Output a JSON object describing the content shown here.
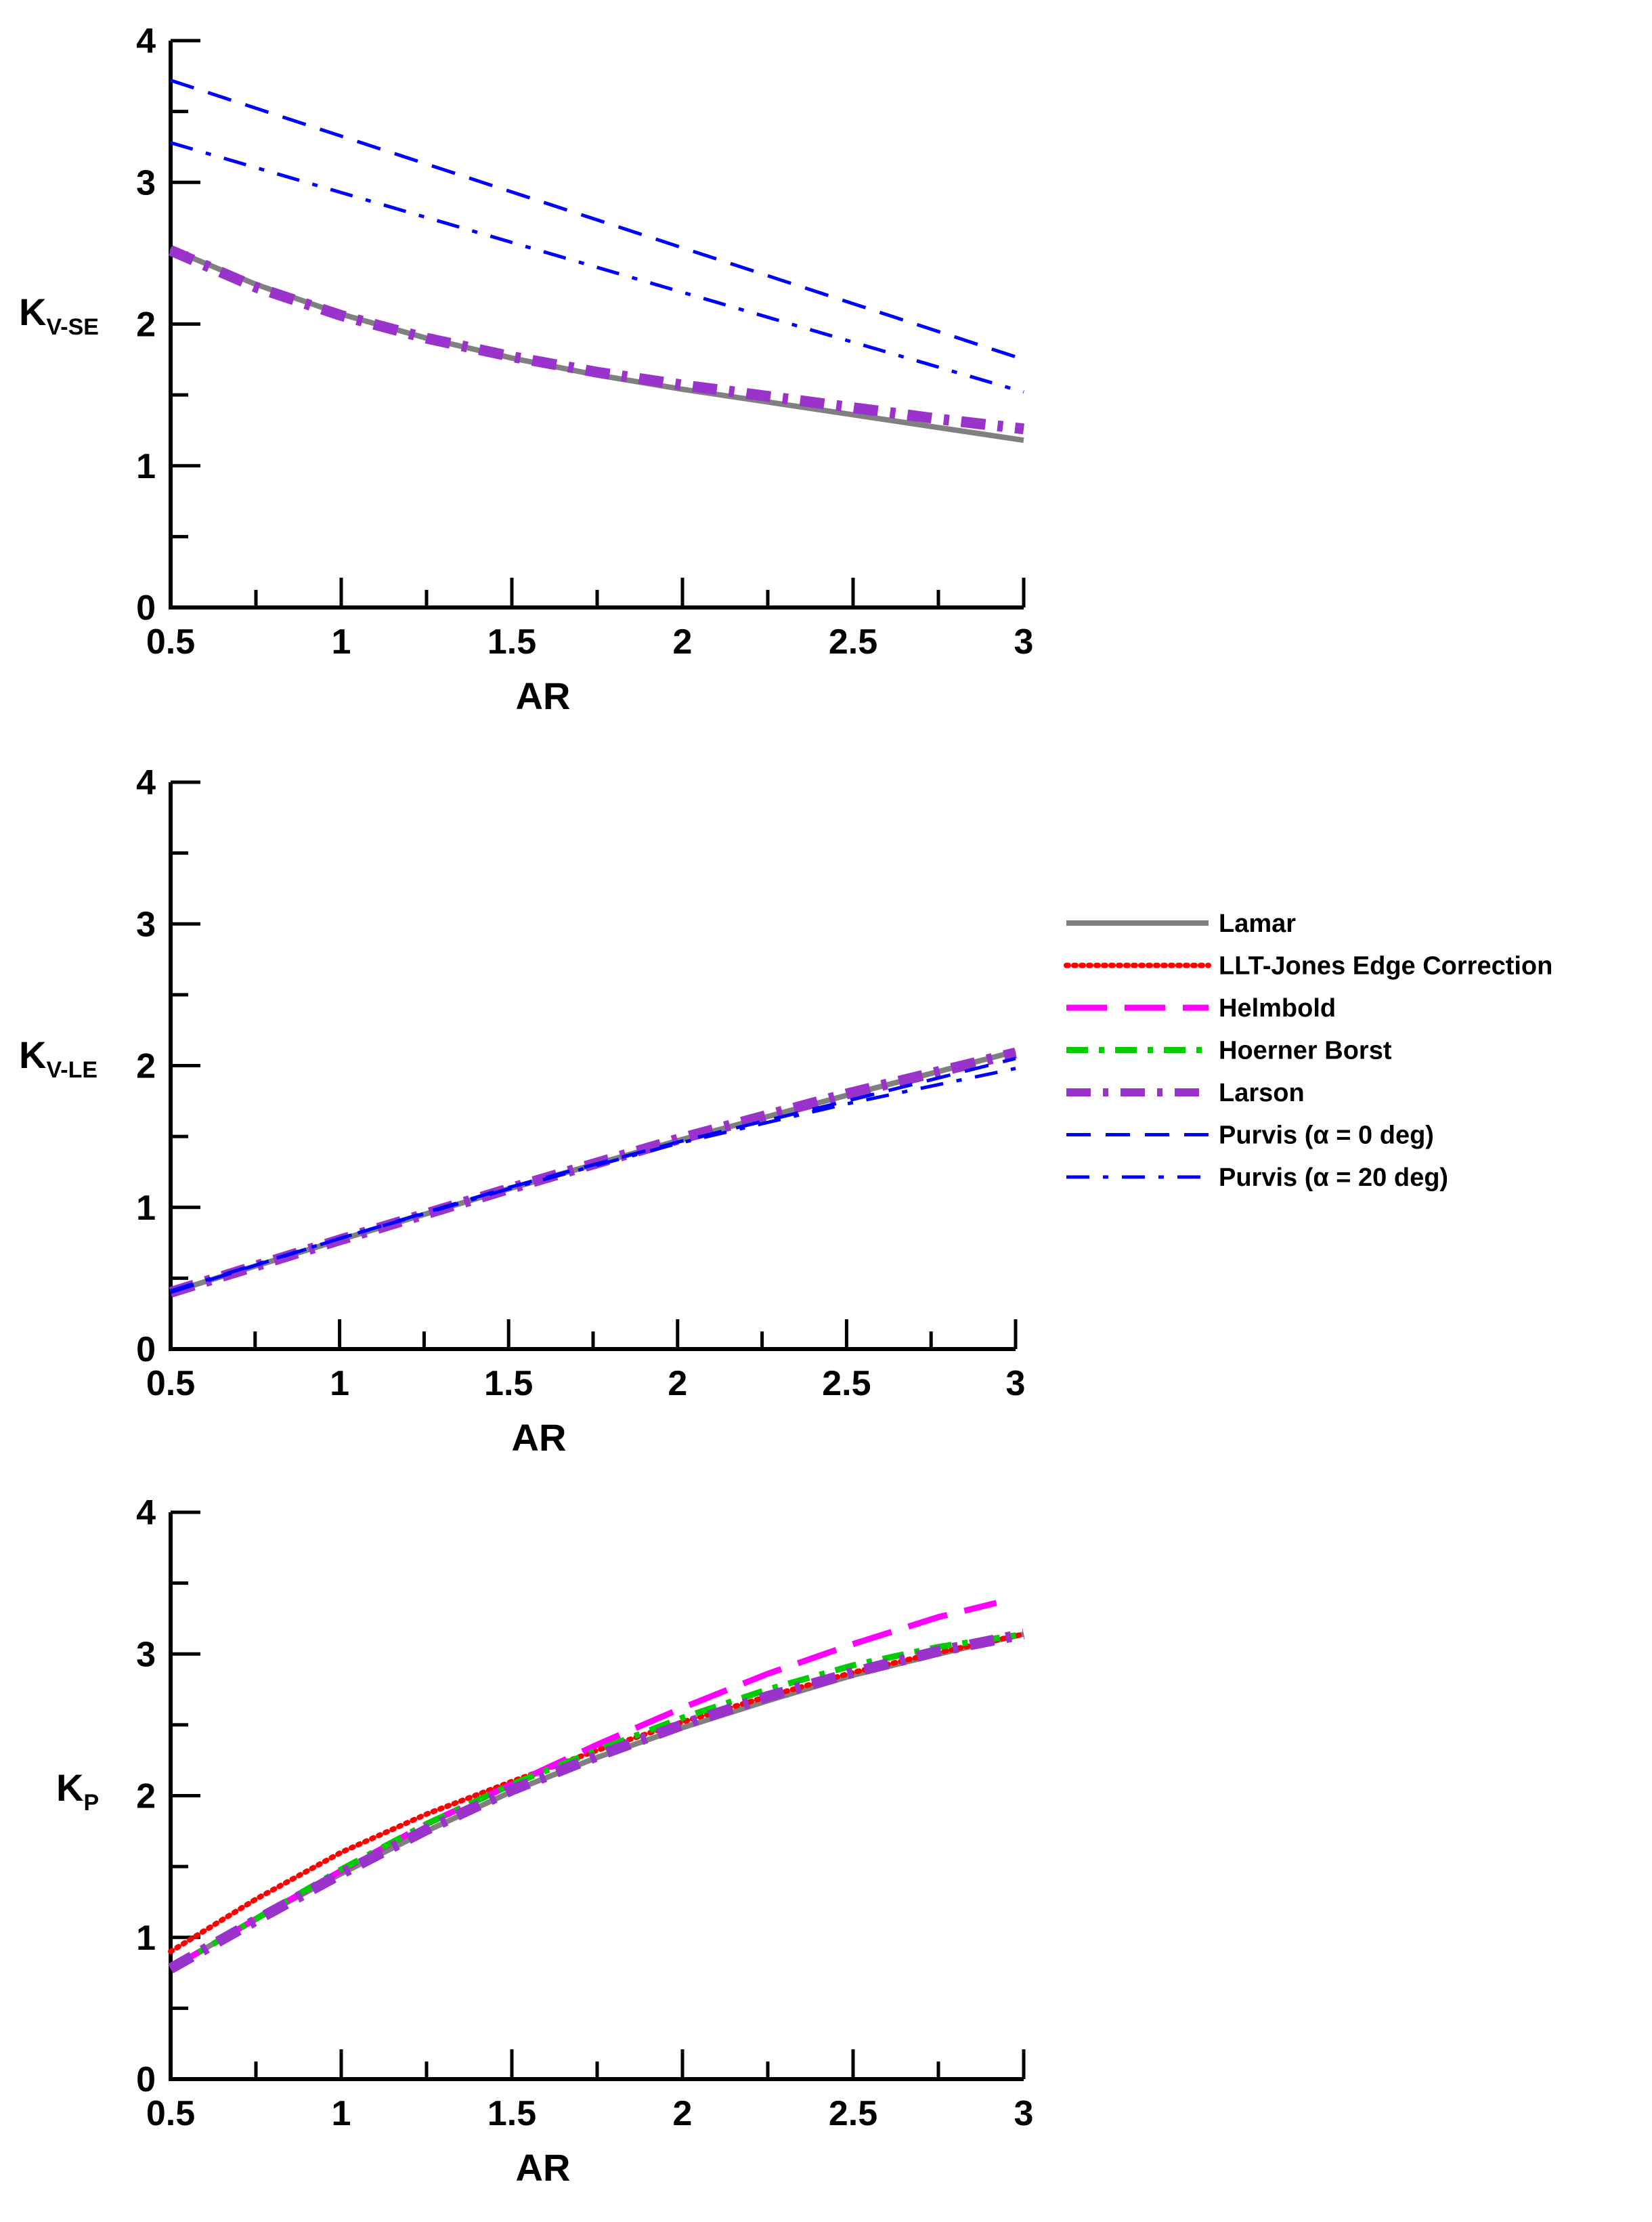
{
  "legend": [
    {
      "name": "Lamar",
      "color": "#808080",
      "style": "solid"
    },
    {
      "name": "LLT-Jones Edge Correction",
      "color": "#ff0000",
      "style": "dotted"
    },
    {
      "name": "Helmbold",
      "color": "#ff00ff",
      "style": "longdash"
    },
    {
      "name": "Hoerner Borst",
      "color": "#00cc00",
      "style": "dashdot"
    },
    {
      "name": "Larson",
      "color": "#9933cc",
      "style": "dashdot-thick"
    },
    {
      "name": "Purvis (α = 0 deg)",
      "color": "#0000ff",
      "style": "dash"
    },
    {
      "name": "Purvis (α = 20 deg)",
      "color": "#0000ff",
      "style": "dashdot-thin"
    }
  ],
  "chart_data": [
    {
      "type": "line",
      "xlabel": "AR",
      "ylabel": "K",
      "ylabel_sub": "V-SE",
      "xlim": [
        0.5,
        3
      ],
      "ylim": [
        0,
        4
      ],
      "xticks": [
        "0.5",
        "1",
        "1.5",
        "2",
        "2.5",
        "3"
      ],
      "yticks": [
        "0",
        "1",
        "2",
        "3",
        "4"
      ],
      "series": [
        {
          "name": "Lamar",
          "x": [
            0.5,
            0.75,
            1,
            1.25,
            1.5,
            1.75,
            2,
            2.25,
            2.5,
            2.75,
            3
          ],
          "y": [
            2.53,
            2.28,
            2.07,
            1.9,
            1.76,
            1.64,
            1.54,
            1.45,
            1.36,
            1.27,
            1.18
          ]
        },
        {
          "name": "Larson",
          "x": [
            0.5,
            0.75,
            1,
            1.25,
            1.5,
            1.75,
            2,
            2.25,
            2.5,
            2.75,
            3
          ],
          "y": [
            2.52,
            2.26,
            2.06,
            1.9,
            1.77,
            1.66,
            1.57,
            1.49,
            1.41,
            1.33,
            1.26
          ]
        },
        {
          "name": "Purvis (α = 0 deg)",
          "x": [
            0.5,
            3
          ],
          "y": [
            3.72,
            1.75
          ]
        },
        {
          "name": "Purvis (α = 20 deg)",
          "x": [
            0.5,
            3
          ],
          "y": [
            3.28,
            1.52
          ]
        }
      ]
    },
    {
      "type": "line",
      "xlabel": "AR",
      "ylabel": "K",
      "ylabel_sub": "V-LE",
      "xlim": [
        0.5,
        3
      ],
      "ylim": [
        0,
        4
      ],
      "xticks": [
        "0.5",
        "1",
        "1.5",
        "2",
        "2.5",
        "3"
      ],
      "yticks": [
        "0",
        "1",
        "2",
        "3",
        "4"
      ],
      "series": [
        {
          "name": "Lamar",
          "x": [
            0.5,
            1,
            1.5,
            2,
            2.5,
            3
          ],
          "y": [
            0.4,
            0.77,
            1.13,
            1.47,
            1.79,
            2.1
          ]
        },
        {
          "name": "Larson",
          "x": [
            0.5,
            1,
            1.5,
            2,
            2.5,
            3
          ],
          "y": [
            0.4,
            0.77,
            1.13,
            1.48,
            1.8,
            2.09
          ]
        },
        {
          "name": "Purvis (α = 0 deg)",
          "x": [
            0.5,
            1,
            1.5,
            2,
            2.5,
            3
          ],
          "y": [
            0.4,
            0.78,
            1.14,
            1.46,
            1.75,
            2.05
          ]
        },
        {
          "name": "Purvis (α = 20 deg)",
          "x": [
            0.5,
            1,
            1.5,
            2,
            2.5,
            3
          ],
          "y": [
            0.41,
            0.78,
            1.13,
            1.45,
            1.73,
            1.98
          ]
        }
      ]
    },
    {
      "type": "line",
      "xlabel": "AR",
      "ylabel": "K",
      "ylabel_sub": "P",
      "xlim": [
        0.5,
        3
      ],
      "ylim": [
        0,
        4
      ],
      "xticks": [
        "0.5",
        "1",
        "1.5",
        "2",
        "2.5",
        "3"
      ],
      "yticks": [
        "0",
        "1",
        "2",
        "3",
        "4"
      ],
      "series": [
        {
          "name": "Lamar",
          "x": [
            0.5,
            0.75,
            1,
            1.25,
            1.5,
            1.75,
            2,
            2.25,
            2.5,
            2.75,
            3
          ],
          "y": [
            0.78,
            1.13,
            1.45,
            1.75,
            2.03,
            2.27,
            2.48,
            2.67,
            2.85,
            3.0,
            3.14
          ]
        },
        {
          "name": "LLT-Jones Edge Correction",
          "x": [
            0.5,
            0.75,
            1,
            1.25,
            1.5,
            1.75,
            2,
            2.25,
            2.5,
            2.75,
            3
          ],
          "y": [
            0.9,
            1.27,
            1.6,
            1.87,
            2.1,
            2.32,
            2.52,
            2.7,
            2.87,
            3.01,
            3.14
          ]
        },
        {
          "name": "Helmbold",
          "x": [
            0.5,
            0.75,
            1,
            1.25,
            1.5,
            1.75,
            2,
            2.25,
            2.5,
            2.75,
            2.92
          ],
          "y": [
            0.78,
            1.13,
            1.47,
            1.8,
            2.08,
            2.36,
            2.62,
            2.86,
            3.07,
            3.26,
            3.36
          ]
        },
        {
          "name": "Hoerner Borst",
          "x": [
            0.5,
            0.75,
            1,
            1.25,
            1.5,
            1.75,
            2,
            2.25,
            2.5,
            2.75,
            3
          ],
          "y": [
            0.78,
            1.13,
            1.48,
            1.8,
            2.08,
            2.32,
            2.55,
            2.75,
            2.92,
            3.05,
            3.14
          ]
        },
        {
          "name": "Larson",
          "x": [
            0.5,
            0.75,
            1,
            1.25,
            1.5,
            1.75,
            2,
            2.25,
            2.5,
            2.75,
            3
          ],
          "y": [
            0.78,
            1.12,
            1.45,
            1.76,
            2.04,
            2.28,
            2.5,
            2.7,
            2.87,
            3.02,
            3.14
          ]
        }
      ]
    }
  ]
}
